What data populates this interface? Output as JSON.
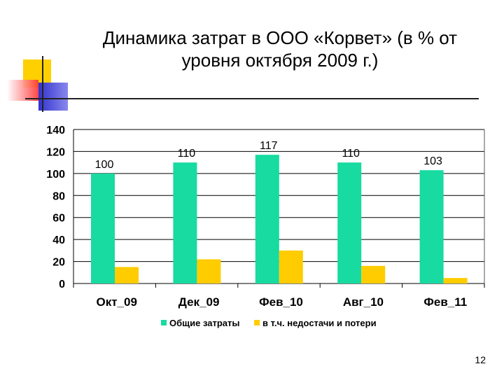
{
  "slide": {
    "title": "Динамика затрат в ООО «Корвет» (в % от уровня октября 2009 г.)",
    "page_number": "12"
  },
  "colors": {
    "series1": "#17DBA0",
    "series2": "#FFCC00",
    "deco_yellow": "#FFD000",
    "deco_red": "#FF3333",
    "deco_blue": "#3333CC"
  },
  "chart_data": {
    "type": "bar",
    "title": "",
    "xlabel": "",
    "ylabel": "",
    "categories": [
      "Окт_09",
      "Дек_09",
      "Фев_10",
      "Авг_10",
      "Фев_11"
    ],
    "series": [
      {
        "name": "Общие затраты",
        "values": [
          100,
          110,
          117,
          110,
          103
        ],
        "color": "#17DBA0",
        "data_labels": [
          "100",
          "110",
          "117",
          "110",
          "103"
        ]
      },
      {
        "name": "в т.ч. недостачи и потери",
        "values": [
          15,
          22,
          30,
          16,
          5
        ],
        "color": "#FFCC00"
      }
    ],
    "ylim": [
      0,
      140
    ],
    "yticks": [
      0,
      20,
      40,
      60,
      80,
      100,
      120,
      140
    ],
    "ytick_labels": [
      "0",
      "20",
      "40",
      "60",
      "80",
      "100",
      "120",
      "140"
    ],
    "grid": true,
    "legend": "bottom"
  }
}
